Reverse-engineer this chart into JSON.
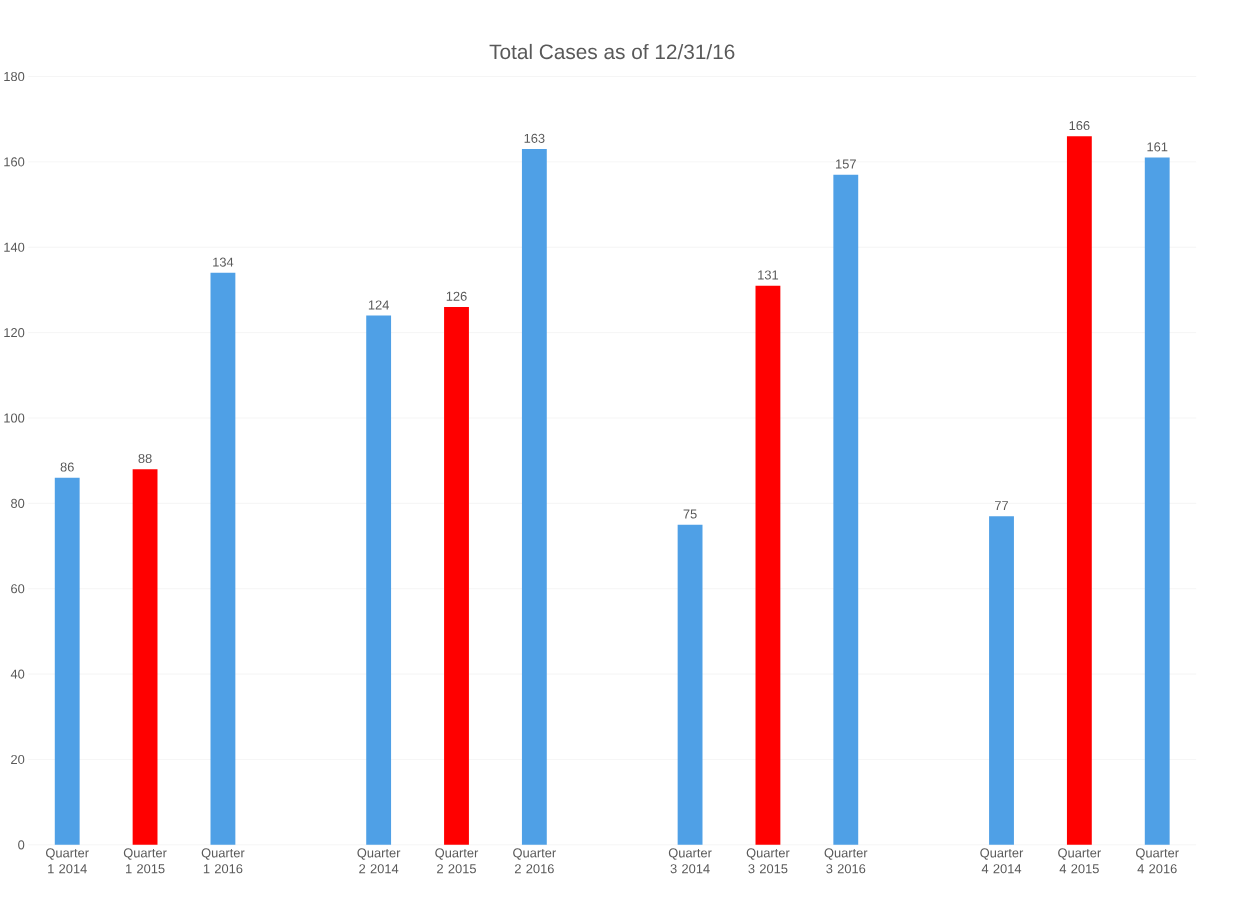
{
  "chart_data": {
    "type": "bar",
    "title": "Total Cases as of  12/31/16",
    "categories": [
      "Quarter 1 2014",
      "Quarter 1 2015",
      "Quarter 1 2016",
      null,
      "Quarter 2 2014",
      "Quarter 2 2015",
      "Quarter 2 2016",
      null,
      "Quarter 3 2014",
      "Quarter 3 2015",
      "Quarter 3 2016",
      null,
      "Quarter 4 2014",
      "Quarter 4 2015",
      "Quarter 4 2016"
    ],
    "values": [
      86,
      88,
      134,
      null,
      124,
      126,
      163,
      null,
      75,
      131,
      157,
      null,
      77,
      166,
      161
    ],
    "colors": [
      "#4fa0e6",
      "#ff0000",
      "#4fa0e6",
      "#4fa0e6",
      "#4fa0e6",
      "#ff0000",
      "#4fa0e6",
      "#4fa0e6",
      "#4fa0e6",
      "#ff0000",
      "#4fa0e6",
      "#4fa0e6",
      "#4fa0e6",
      "#ff0000",
      "#4fa0e6"
    ],
    "ylim": [
      0,
      180
    ],
    "yticks": [
      0,
      20,
      40,
      60,
      80,
      100,
      120,
      140,
      160,
      180
    ],
    "grid": "y",
    "data_labels": true
  }
}
